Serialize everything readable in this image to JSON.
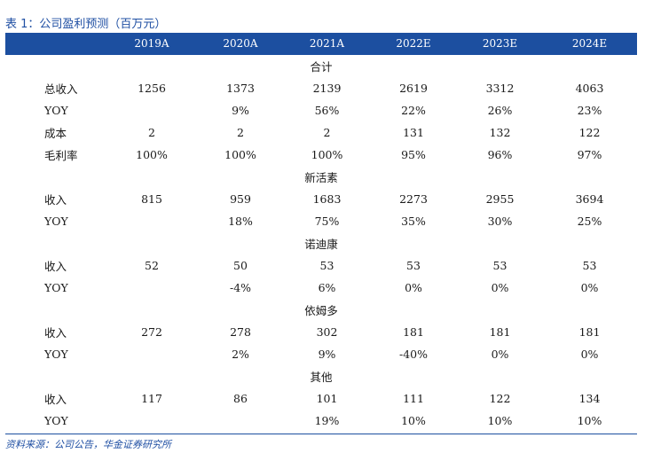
{
  "caption": "表 1：公司盈利预测（百万元）",
  "header": [
    "",
    "2019A",
    "2020A",
    "2021A",
    "2022E",
    "2023E",
    "2024E"
  ],
  "rows": [
    {
      "type": "section",
      "title": "合计"
    },
    {
      "type": "data",
      "label": "总收入",
      "values": [
        "1256",
        "1373",
        "2139",
        "2619",
        "3312",
        "4063"
      ]
    },
    {
      "type": "data",
      "label": "YOY",
      "values": [
        "",
        "9%",
        "56%",
        "22%",
        "26%",
        "23%"
      ]
    },
    {
      "type": "data",
      "label": "成本",
      "values": [
        "2",
        "2",
        "2",
        "131",
        "132",
        "122"
      ]
    },
    {
      "type": "data",
      "label": "毛利率",
      "values": [
        "100%",
        "100%",
        "100%",
        "95%",
        "96%",
        "97%"
      ]
    },
    {
      "type": "section",
      "title": "新活素"
    },
    {
      "type": "data",
      "label": "收入",
      "values": [
        "815",
        "959",
        "1683",
        "2273",
        "2955",
        "3694"
      ]
    },
    {
      "type": "data",
      "label": "YOY",
      "values": [
        "",
        "18%",
        "75%",
        "35%",
        "30%",
        "25%"
      ]
    },
    {
      "type": "section",
      "title": "诺迪康"
    },
    {
      "type": "data",
      "label": "收入",
      "values": [
        "52",
        "50",
        "53",
        "53",
        "53",
        "53"
      ]
    },
    {
      "type": "data",
      "label": "YOY",
      "values": [
        "",
        "-4%",
        "6%",
        "0%",
        "0%",
        "0%"
      ]
    },
    {
      "type": "section",
      "title": "依姆多"
    },
    {
      "type": "data",
      "label": "收入",
      "values": [
        "272",
        "278",
        "302",
        "181",
        "181",
        "181"
      ]
    },
    {
      "type": "data",
      "label": "YOY",
      "values": [
        "",
        "2%",
        "9%",
        "-40%",
        "0%",
        "0%"
      ]
    },
    {
      "type": "section",
      "title": "其他"
    },
    {
      "type": "data",
      "label": "收入",
      "values": [
        "117",
        "86",
        "101",
        "111",
        "122",
        "134"
      ]
    },
    {
      "type": "data",
      "label": "YOY",
      "values": [
        "",
        "",
        "19%",
        "10%",
        "10%",
        "10%"
      ]
    }
  ],
  "source": "资料来源：公司公告，华金证券研究所"
}
